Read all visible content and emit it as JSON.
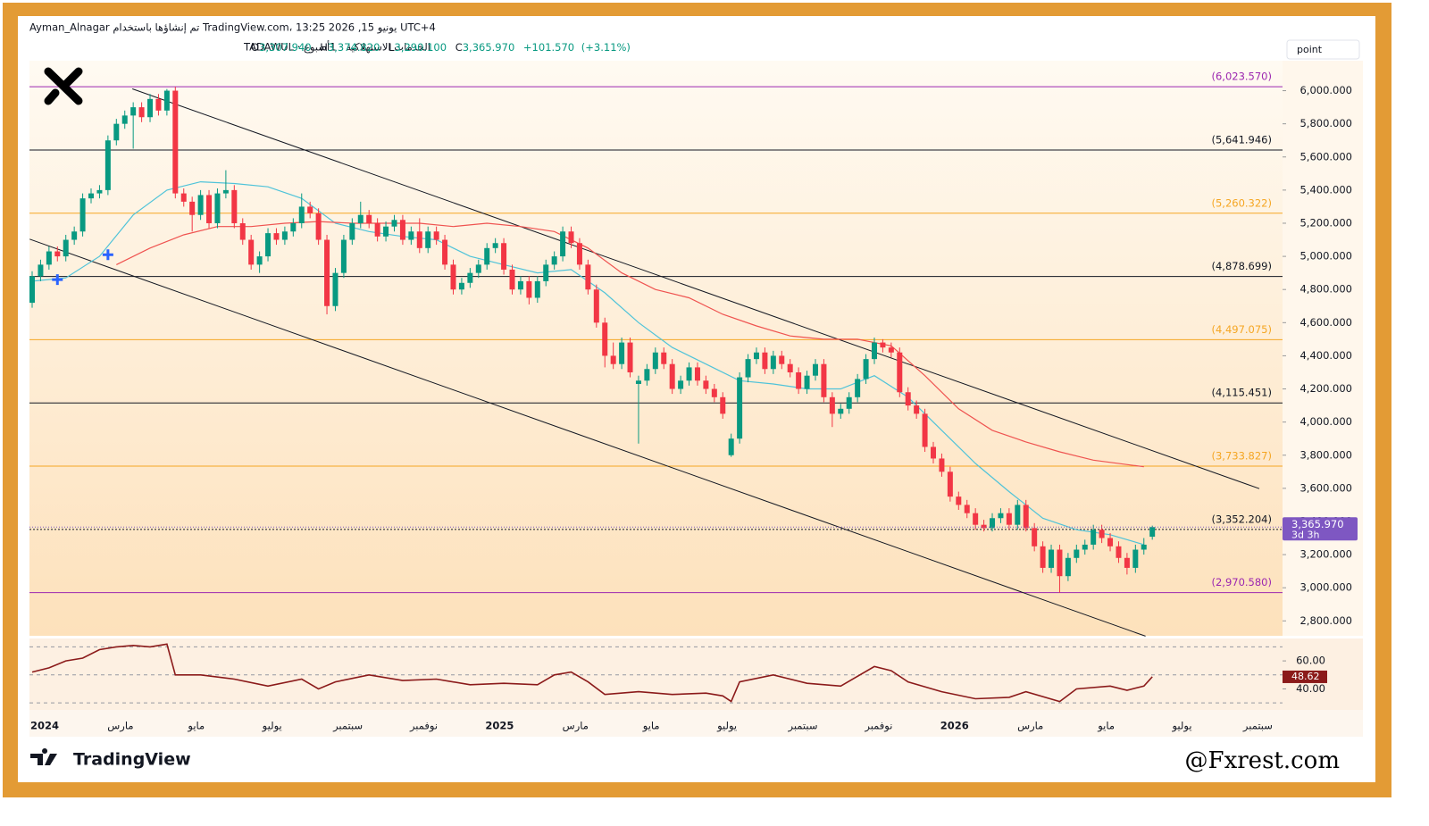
{
  "header": {
    "line1": "Ayman_Alnagar تم إنشاؤها باستخدام TradingView.com، 13:25 2026 ,15 يونيو UTC+4",
    "symbol": "الخدمات الاستهلاكية · 1أسبوع · TADAWUL",
    "ohlc": [
      {
        "key": "O",
        "value": 3307.94,
        "label": "3,307.940"
      },
      {
        "key": "H",
        "value": 3374.82,
        "label": "3,374.820"
      },
      {
        "key": "L",
        "value": 3290.1,
        "label": "3,290.100"
      },
      {
        "key": "C",
        "value": 3365.97,
        "label": "3,365.970"
      }
    ],
    "change": {
      "value": 101.57,
      "label": "+101.570"
    },
    "change_pct": {
      "value": 3.11,
      "label": "(+3.11%)"
    },
    "scale_button": "point",
    "countdown": "3d 3h",
    "brand": "TradingView",
    "watermark": "@Fxrest.com"
  },
  "chart_data": {
    "type": "candlestick",
    "up_color": "#089981",
    "down_color": "#f23645",
    "grid": false,
    "ylim": [
      2710,
      6170
    ],
    "yticks": [
      {
        "value": 2800,
        "label": "2,800.000"
      },
      {
        "value": 3000,
        "label": "3,000.000"
      },
      {
        "value": 3200,
        "label": "3,200.000"
      },
      {
        "value": 3400,
        "label": "3,400.000"
      },
      {
        "value": 3600,
        "label": "3,600.000"
      },
      {
        "value": 3800,
        "label": "3,800.000"
      },
      {
        "value": 4000,
        "label": "4,000.000"
      },
      {
        "value": 4200,
        "label": "4,200.000"
      },
      {
        "value": 4400,
        "label": "4,400.000"
      },
      {
        "value": 4600,
        "label": "4,600.000"
      },
      {
        "value": 4800,
        "label": "4,800.000"
      },
      {
        "value": 5000,
        "label": "5,000.000"
      },
      {
        "value": 5200,
        "label": "5,200.000"
      },
      {
        "value": 5400,
        "label": "5,400.000"
      },
      {
        "value": 5600,
        "label": "5,600.000"
      },
      {
        "value": 5800,
        "label": "5,800.000"
      },
      {
        "value": 6000,
        "label": "6,000.000"
      }
    ],
    "xticks": [
      "2024",
      "مارس",
      "مايو",
      "يوليو",
      "سبتمبر",
      "نوفمبر",
      "2025",
      "مارس",
      "مايو",
      "يوليو",
      "سبتمبر",
      "نوفمبر",
      "2026",
      "مارس",
      "مايو",
      "يوليو",
      "سبتمبر"
    ],
    "open": [
      4720,
      4880,
      4950,
      5030,
      5000,
      5100,
      5150,
      5350,
      5380,
      5400,
      5700,
      5800,
      5850,
      5900,
      5840,
      5950,
      5880,
      6000,
      5380,
      5330,
      5250,
      5370,
      5200,
      5380,
      5400,
      5200,
      5100,
      4950,
      5000,
      5140,
      5100,
      5150,
      5200,
      5300,
      5260,
      5100,
      4700,
      4900,
      5100,
      5200,
      5250,
      5200,
      5120,
      5180,
      5220,
      5100,
      5150,
      5050,
      5150,
      5100,
      4950,
      4800,
      4840,
      4900,
      4950,
      5050,
      5080,
      4920,
      4800,
      4850,
      4750,
      4850,
      4950,
      5000,
      5150,
      5080,
      4950,
      4800,
      4600,
      4400,
      4350,
      4480,
      4230,
      4250,
      4320,
      4420,
      4350,
      4200,
      4250,
      4330,
      4250,
      4200,
      4150,
      3800,
      3900,
      4270,
      4380,
      4420,
      4320,
      4400,
      4350,
      4300,
      4200,
      4280,
      4350,
      4150,
      4050,
      4080,
      4150,
      4260,
      4380,
      4480,
      4450,
      4420,
      4180,
      4100,
      4050,
      3850,
      3780,
      3700,
      3550,
      3500,
      3450,
      3380,
      3360,
      3420,
      3450,
      3380,
      3500,
      3360,
      3250,
      3120,
      3230,
      3070,
      3180,
      3230,
      3260,
      3350,
      3300,
      3250,
      3180,
      3120,
      3230,
      3307.94
    ],
    "high": [
      4910,
      4980,
      5060,
      5060,
      5130,
      5180,
      5380,
      5410,
      5430,
      5730,
      5830,
      5880,
      5930,
      5930,
      5980,
      5980,
      6010,
      6023.57,
      5410,
      5360,
      5400,
      5400,
      5410,
      5520,
      5430,
      5230,
      5130,
      5030,
      5170,
      5170,
      5180,
      5230,
      5380,
      5330,
      5290,
      5130,
      4930,
      5130,
      5230,
      5330,
      5280,
      5230,
      5210,
      5250,
      5250,
      5180,
      5230,
      5180,
      5180,
      5130,
      4980,
      4870,
      4930,
      4980,
      5080,
      5110,
      5110,
      4950,
      4880,
      4880,
      4880,
      4980,
      5030,
      5180,
      5180,
      5110,
      4980,
      4830,
      4630,
      4480,
      4510,
      4510,
      4280,
      4350,
      4450,
      4450,
      4380,
      4280,
      4360,
      4360,
      4280,
      4230,
      4180,
      3930,
      4300,
      4410,
      4450,
      4450,
      4430,
      4430,
      4380,
      4330,
      4310,
      4380,
      4380,
      4180,
      4110,
      4180,
      4290,
      4410,
      4510,
      4500,
      4480,
      4450,
      4210,
      4130,
      4080,
      3880,
      3810,
      3730,
      3580,
      3530,
      3480,
      3410,
      3450,
      3480,
      3480,
      3530,
      3530,
      3390,
      3280,
      3260,
      3260,
      3210,
      3260,
      3290,
      3380,
      3380,
      3330,
      3280,
      3210,
      3260,
      3300,
      3374.82
    ],
    "low": [
      4690,
      4850,
      4920,
      4970,
      4970,
      5070,
      5120,
      5320,
      5350,
      5370,
      5670,
      5770,
      5650,
      5810,
      5810,
      5850,
      5850,
      5350,
      5300,
      5150,
      5220,
      5170,
      5170,
      5350,
      5170,
      5070,
      4920,
      4900,
      4970,
      5070,
      5070,
      5120,
      5170,
      5230,
      5070,
      4650,
      4670,
      4870,
      5070,
      5170,
      5170,
      5090,
      5090,
      5150,
      5070,
      5070,
      5020,
      5020,
      5070,
      4920,
      4770,
      4770,
      4810,
      4870,
      4920,
      5020,
      4890,
      4770,
      4770,
      4710,
      4720,
      4820,
      4920,
      4970,
      5050,
      4920,
      4770,
      4570,
      4330,
      4320,
      4320,
      4270,
      3870,
      4220,
      4290,
      4320,
      4170,
      4170,
      4220,
      4220,
      4170,
      4120,
      4020,
      3790,
      3870,
      4240,
      4350,
      4290,
      4290,
      4320,
      4270,
      4170,
      4170,
      4250,
      4120,
      3970,
      4020,
      4050,
      4120,
      4230,
      4350,
      4420,
      4390,
      4150,
      4070,
      4020,
      3820,
      3750,
      3670,
      3520,
      3470,
      3420,
      3350,
      3340,
      3340,
      3390,
      3350,
      3350,
      3340,
      3220,
      3090,
      3090,
      2970,
      3040,
      3150,
      3200,
      3230,
      3270,
      3220,
      3150,
      3080,
      3090,
      3200,
      3290.1
    ],
    "close": [
      4880,
      4950,
      5030,
      5000,
      5100,
      5150,
      5350,
      5380,
      5400,
      5700,
      5800,
      5850,
      5900,
      5840,
      5950,
      5880,
      6000,
      5380,
      5330,
      5250,
      5370,
      5200,
      5380,
      5400,
      5200,
      5100,
      4950,
      5000,
      5140,
      5100,
      5150,
      5200,
      5300,
      5260,
      5100,
      4700,
      4900,
      5100,
      5200,
      5250,
      5200,
      5120,
      5180,
      5220,
      5100,
      5150,
      5050,
      5150,
      5100,
      4950,
      4800,
      4840,
      4900,
      4950,
      5050,
      5080,
      4920,
      4800,
      4850,
      4750,
      4850,
      4950,
      5000,
      5150,
      5080,
      4950,
      4800,
      4600,
      4400,
      4350,
      4480,
      4300,
      4250,
      4320,
      4420,
      4350,
      4200,
      4250,
      4330,
      4250,
      4200,
      4150,
      4050,
      3900,
      4270,
      4380,
      4420,
      4320,
      4400,
      4350,
      4300,
      4200,
      4280,
      4350,
      4150,
      4050,
      4080,
      4150,
      4260,
      4380,
      4480,
      4450,
      4420,
      4180,
      4100,
      4050,
      3850,
      3780,
      3700,
      3550,
      3500,
      3450,
      3380,
      3360,
      3420,
      3450,
      3380,
      3500,
      3360,
      3250,
      3120,
      3230,
      3070,
      3180,
      3230,
      3260,
      3350,
      3300,
      3250,
      3180,
      3120,
      3230,
      3260,
      3365.97
    ],
    "moving_averages": [
      {
        "color": "#4fc3d9",
        "x": [
          0,
          4,
          8,
          12,
          16,
          20,
          24,
          28,
          32,
          36,
          40,
          44,
          48,
          52,
          56,
          60,
          64,
          68,
          72,
          76,
          80,
          84,
          88,
          92,
          96,
          100,
          104,
          108,
          112,
          116,
          120,
          124,
          128,
          132
        ],
        "values": [
          4850,
          4870,
          5000,
          5250,
          5400,
          5450,
          5440,
          5420,
          5350,
          5200,
          5150,
          5120,
          5100,
          5000,
          4950,
          4900,
          4920,
          4780,
          4600,
          4450,
          4350,
          4250,
          4230,
          4200,
          4200,
          4280,
          4150,
          3950,
          3750,
          3580,
          3420,
          3350,
          3320,
          3260
        ]
      },
      {
        "color": "#ef5350",
        "x": [
          10,
          14,
          18,
          22,
          26,
          30,
          34,
          38,
          42,
          46,
          50,
          54,
          58,
          62,
          66,
          70,
          74,
          78,
          82,
          86,
          90,
          94,
          98,
          102,
          106,
          110,
          114,
          118,
          122,
          126,
          132
        ],
        "values": [
          4950,
          5050,
          5130,
          5180,
          5180,
          5200,
          5210,
          5200,
          5200,
          5200,
          5180,
          5200,
          5180,
          5150,
          5050,
          4900,
          4800,
          4750,
          4650,
          4580,
          4520,
          4500,
          4500,
          4460,
          4280,
          4080,
          3950,
          3880,
          3820,
          3770,
          3730
        ]
      }
    ],
    "signals": {
      "color": "#2962ff",
      "x": [
        3,
        9
      ],
      "values": [
        4860,
        5010
      ]
    },
    "trendlines": [
      {
        "color": "#131722",
        "x": [
          11.9,
          145.7
        ],
        "values": [
          6011,
          3598
        ]
      },
      {
        "color": "#131722",
        "x": [
          -0.3,
          132.2
        ],
        "values": [
          5104,
          2708
        ]
      }
    ],
    "levels": [
      {
        "value": 6023.57,
        "label": "(6,023.570)",
        "color": "#9c27b0",
        "style": "solid"
      },
      {
        "value": 5641.946,
        "label": "(5,641.946)",
        "color": "#131722",
        "style": "solid"
      },
      {
        "value": 5260.322,
        "label": "(5,260.322)",
        "color": "#f5a623",
        "style": "solid"
      },
      {
        "value": 4878.699,
        "label": "(4,878.699)",
        "color": "#131722",
        "style": "solid"
      },
      {
        "value": 4497.075,
        "label": "(4,497.075)",
        "color": "#f5a623",
        "style": "solid"
      },
      {
        "value": 4115.451,
        "label": "(4,115.451)",
        "color": "#131722",
        "style": "solid"
      },
      {
        "value": 3733.827,
        "label": "(3,733.827)",
        "color": "#f5a623",
        "style": "solid"
      },
      {
        "value": 3352.204,
        "label": "(3,352.204)",
        "color": "#131722",
        "style": "dotted"
      },
      {
        "value": 2970.58,
        "label": "(2,970.580)",
        "color": "#9c27b0",
        "style": "solid"
      }
    ],
    "last_price_color": "#7e57c2",
    "rsi": {
      "color": "#8b1a1a",
      "ylim": [
        25,
        76
      ],
      "bands": [
        70,
        50,
        30
      ],
      "yticks": [
        {
          "value": 60,
          "label": "60.00"
        },
        {
          "value": 40,
          "label": "40.00"
        }
      ],
      "x": [
        0,
        2,
        4,
        6,
        8,
        10,
        12,
        14,
        16,
        17,
        20,
        24,
        28,
        32,
        34,
        36,
        40,
        44,
        48,
        52,
        56,
        60,
        62,
        64,
        66,
        68,
        72,
        76,
        80,
        82,
        83,
        84,
        88,
        92,
        96,
        100,
        102,
        104,
        108,
        112,
        116,
        118,
        122,
        124,
        128,
        130,
        132,
        133
      ],
      "values": [
        52,
        55,
        60,
        62,
        68,
        70,
        71,
        70,
        72,
        50,
        50,
        47,
        42,
        47,
        40,
        45,
        50,
        46,
        47,
        43,
        44,
        43,
        50,
        52,
        45,
        36,
        38,
        36,
        37,
        35,
        31,
        45,
        50,
        44,
        42,
        56,
        53,
        45,
        38,
        33,
        34,
        38,
        31,
        40,
        42,
        39,
        42,
        48.62
      ]
    }
  }
}
